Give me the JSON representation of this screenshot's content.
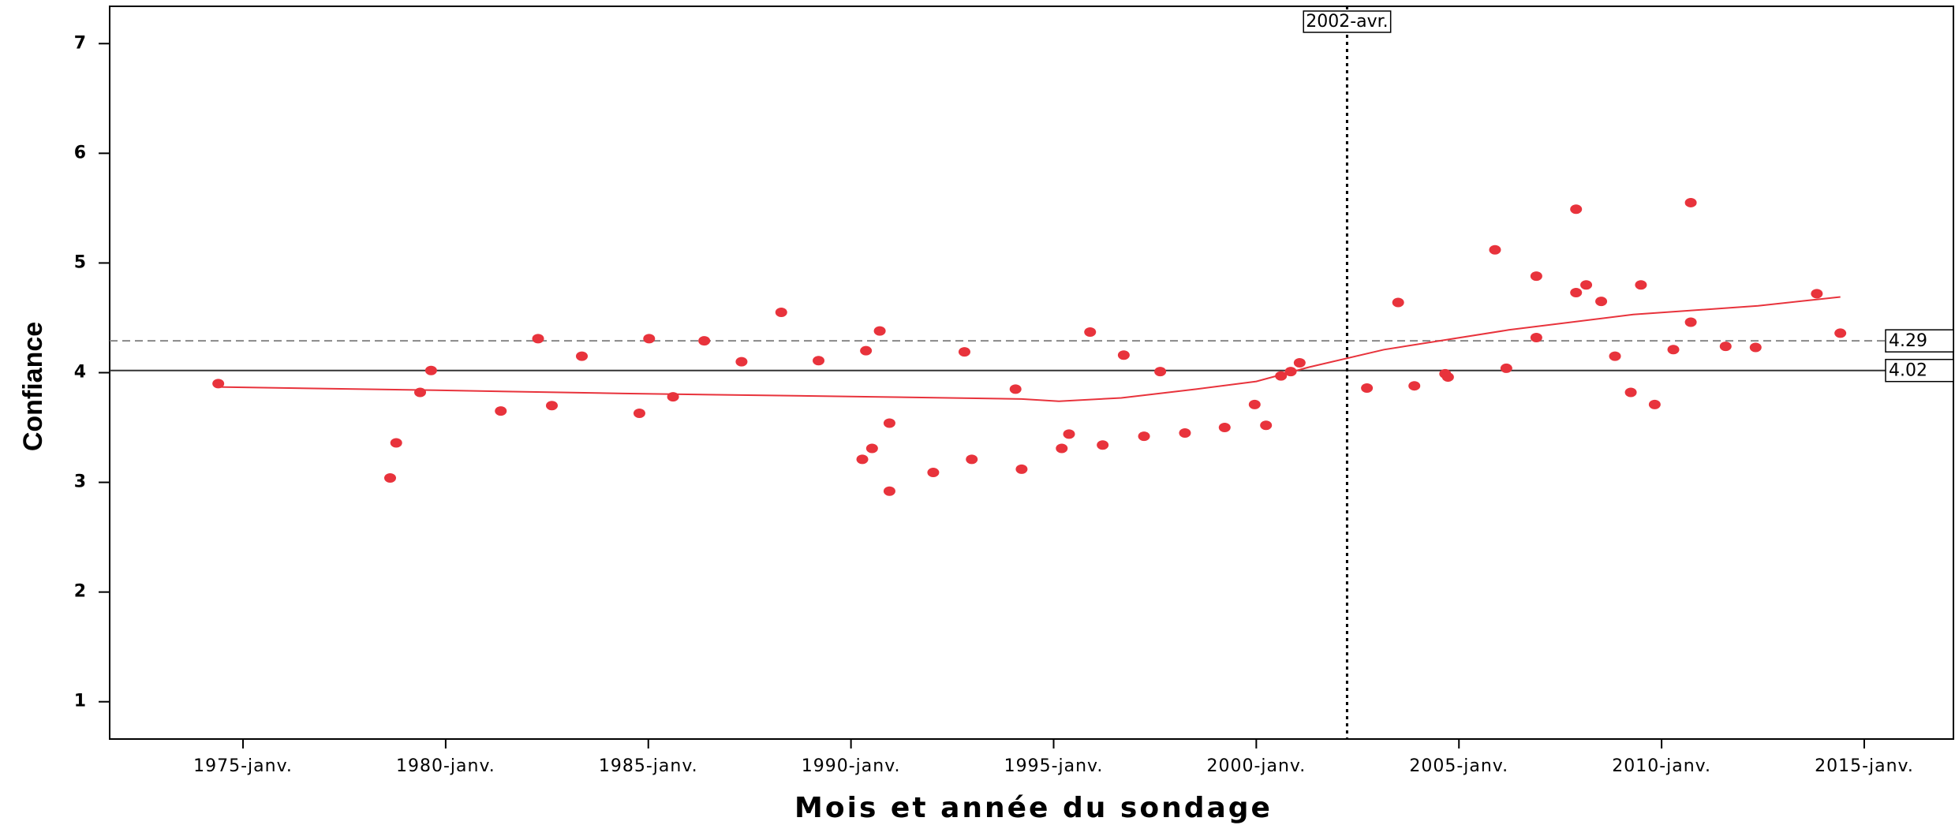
{
  "chart_data": {
    "type": "scatter",
    "y_label": "Confiance",
    "x_label": "Mois et année du sondage",
    "color": "#e8333c",
    "xlim": [
      1971.71,
      2017.2
    ],
    "ylim": [
      0.66,
      7.34
    ],
    "xticks": [
      {
        "value": 1975,
        "label": "1975-janv."
      },
      {
        "value": 1980,
        "label": "1980-janv."
      },
      {
        "value": 1985,
        "label": "1985-janv."
      },
      {
        "value": 1990,
        "label": "1990-janv."
      },
      {
        "value": 1995,
        "label": "1995-janv."
      },
      {
        "value": 2000,
        "label": "2000-janv."
      },
      {
        "value": 2005,
        "label": "2005-janv."
      },
      {
        "value": 2010,
        "label": "2010-janv."
      },
      {
        "value": 2015,
        "label": "2015-janv."
      }
    ],
    "yticks": [
      1,
      2,
      3,
      4,
      5,
      6,
      7
    ],
    "x": [
      1974.39,
      1978.63,
      1978.78,
      1979.37,
      1979.64,
      1981.36,
      1982.28,
      1982.62,
      1983.36,
      1984.78,
      1985.02,
      1985.61,
      1986.38,
      1987.3,
      1988.28,
      1989.2,
      1990.28,
      1990.37,
      1990.52,
      1990.71,
      1990.95,
      1990.95,
      1992.03,
      1992.8,
      1992.98,
      1994.06,
      1994.21,
      1995.2,
      1995.38,
      1995.9,
      1996.21,
      1996.73,
      1997.23,
      1997.63,
      1998.24,
      1999.22,
      1999.96,
      2000.24,
      2000.61,
      2000.85,
      2001.07,
      2002.73,
      2003.5,
      2003.9,
      2004.66,
      2004.73,
      2005.89,
      2006.17,
      2006.91,
      2006.91,
      2007.89,
      2007.89,
      2008.14,
      2008.51,
      2008.85,
      2009.24,
      2009.49,
      2009.83,
      2010.29,
      2010.72,
      2010.72,
      2011.58,
      2012.32,
      2013.83,
      2014.41
    ],
    "values": [
      3.9,
      3.04,
      3.36,
      3.82,
      4.02,
      3.65,
      4.31,
      3.7,
      4.15,
      3.63,
      4.31,
      3.78,
      4.29,
      4.1,
      4.55,
      4.11,
      3.21,
      4.2,
      3.31,
      4.38,
      3.54,
      2.92,
      3.09,
      4.19,
      3.21,
      3.85,
      3.12,
      3.31,
      3.44,
      4.37,
      3.34,
      4.16,
      3.42,
      4.01,
      3.45,
      3.5,
      3.71,
      3.52,
      3.97,
      4.01,
      4.09,
      3.86,
      4.64,
      3.88,
      3.99,
      3.96,
      5.12,
      4.04,
      4.88,
      4.32,
      5.49,
      4.73,
      4.8,
      4.65,
      4.15,
      3.82,
      4.8,
      3.71,
      4.21,
      5.55,
      4.46,
      4.24,
      4.23,
      4.72,
      4.36
    ],
    "fit_line": {
      "color": "#e8333c",
      "x": [
        1974.39,
        1979.76,
        1984.38,
        1990.52,
        1994.21,
        1995.13,
        1996.67,
        1998.52,
        2000.0,
        2001.3,
        2003.15,
        2006.23,
        2009.3,
        2012.38,
        2014.41
      ],
      "values": [
        3.87,
        3.84,
        3.81,
        3.78,
        3.76,
        3.74,
        3.77,
        3.85,
        3.92,
        4.05,
        4.21,
        4.39,
        4.53,
        4.61,
        4.69
      ]
    },
    "reference_lines": [
      {
        "axis": "y",
        "value": 4.29,
        "style": "dashed",
        "color": "#888888"
      },
      {
        "axis": "y",
        "value": 4.02,
        "style": "solid",
        "color": "#333333"
      },
      {
        "axis": "x",
        "value": 2002.24,
        "label": "2002-avr.",
        "style": "dotted",
        "color": "#000000"
      }
    ]
  }
}
